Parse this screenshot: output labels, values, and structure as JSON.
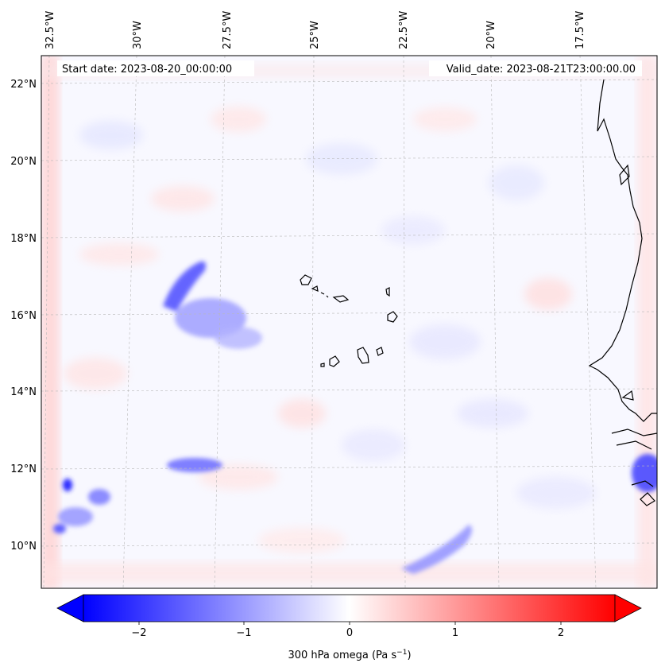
{
  "map": {
    "start_date_label": "Start date: 2023-08-20_00:00:00",
    "valid_date_label": "Valid_date: 2023-08-21T23:00:00.00",
    "lon_labels": [
      "32.5°W",
      "30°W",
      "27.5°W",
      "25°W",
      "22.5°W",
      "20°W",
      "17.5°W"
    ],
    "lat_labels": [
      "22°N",
      "20°N",
      "18°N",
      "16°N",
      "14°N",
      "12°N",
      "10°N"
    ],
    "colors": {
      "negative_max": "#0000ff",
      "positive_max": "#ff0000",
      "neutral": "#ffffff",
      "coastline": "#000000",
      "gridline": "#b0b0b0"
    }
  },
  "colorbar": {
    "ticks": [
      "−2",
      "−1",
      "0",
      "1",
      "2"
    ],
    "label_prefix": "300 hPa omega (Pa s",
    "label_exponent": "−1",
    "label_suffix": ")",
    "range": [
      -2.7,
      2.7
    ],
    "extend": "both",
    "colormap": "bwr"
  }
}
